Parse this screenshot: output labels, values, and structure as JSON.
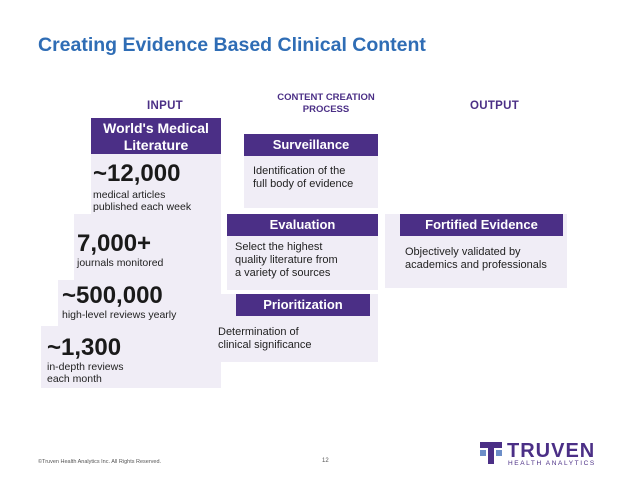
{
  "title": "Creating Evidence Based Clinical Content",
  "columns": {
    "input": "INPUT",
    "process_line1": "CONTENT CREATION",
    "process_line2": "PROCESS",
    "output": "OUTPUT"
  },
  "input_panel": {
    "header_line1": "World's Medical",
    "header_line2": "Literature",
    "stats": [
      {
        "number": "~12,000",
        "line1": "medical articles",
        "line2": "published each week"
      },
      {
        "number": "7,000+",
        "line1": "journals monitored",
        "line2": ""
      },
      {
        "number": "~500,000",
        "line1": "high-level reviews yearly",
        "line2": ""
      },
      {
        "number": "~1,300",
        "line1": "in-depth reviews",
        "line2": "each month"
      }
    ]
  },
  "process": [
    {
      "title": "Surveillance",
      "line1": "Identification of the",
      "line2": "full body of evidence",
      "line3": ""
    },
    {
      "title": "Evaluation",
      "line1": "Select the highest",
      "line2": "quality literature from",
      "line3": "a variety of sources"
    },
    {
      "title": "Prioritization",
      "line1": "Determination of",
      "line2": "clinical significance",
      "line3": ""
    }
  ],
  "output": {
    "title": "Fortified Evidence",
    "line1": "Objectively validated by",
    "line2": "academics and professionals"
  },
  "footer": {
    "copyright": "©Truven Health Analytics Inc. All Rights Reserved.",
    "page": "12"
  },
  "logo": {
    "word": "TRUVEN",
    "sub": "HEALTH ANALYTICS"
  },
  "colors": {
    "title": "#2f6db5",
    "purple": "#4b2f86",
    "panel": "#f0edf6"
  }
}
